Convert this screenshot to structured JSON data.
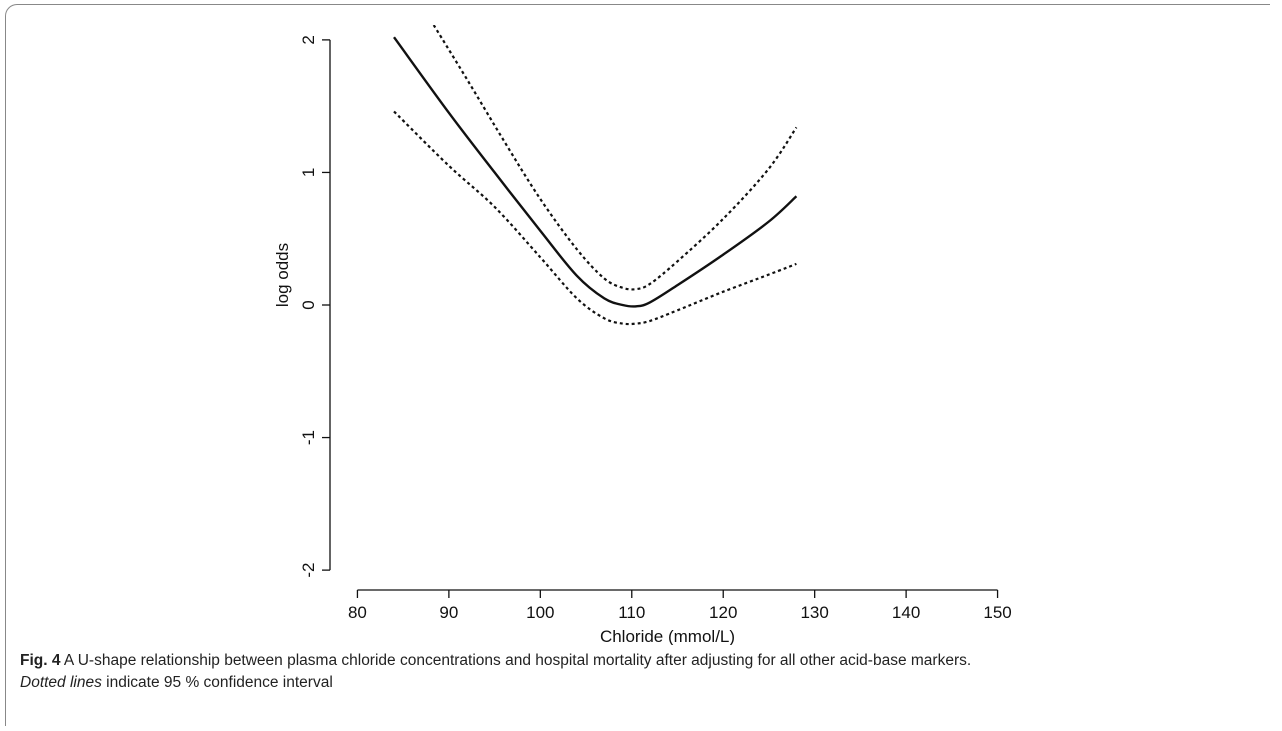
{
  "chart_data": {
    "type": "line",
    "xlabel": "Chloride (mmol/L)",
    "ylabel": "log odds",
    "xlim": [
      77,
      153
    ],
    "ylim": [
      -2.15,
      2.15
    ],
    "x_ticks": [
      "80",
      "90",
      "100",
      "110",
      "120",
      "130",
      "140",
      "150"
    ],
    "y_ticks": [
      "-2",
      "-1",
      "0",
      "1",
      "2"
    ],
    "grid": false,
    "series": [
      {
        "style": "solid",
        "x": [
          84,
          90,
          95,
          100,
          104,
          107,
          109,
          110.5,
          112,
          115,
          120,
          125,
          128
        ],
        "y": [
          2.02,
          1.45,
          1.0,
          0.56,
          0.22,
          0.05,
          0.0,
          -0.01,
          0.02,
          0.15,
          0.38,
          0.63,
          0.82
        ]
      },
      {
        "style": "dotted",
        "x": [
          88,
          92,
          96,
          100,
          104,
          107,
          109,
          110.5,
          112,
          115,
          120,
          125,
          128
        ],
        "y": [
          2.15,
          1.7,
          1.24,
          0.8,
          0.42,
          0.2,
          0.13,
          0.12,
          0.16,
          0.33,
          0.65,
          1.03,
          1.34
        ]
      },
      {
        "style": "dotted",
        "x": [
          84,
          90,
          95,
          100,
          104,
          107,
          109,
          110.5,
          112,
          115,
          120,
          125,
          128
        ],
        "y": [
          1.46,
          1.05,
          0.74,
          0.36,
          0.05,
          -0.1,
          -0.14,
          -0.14,
          -0.12,
          -0.04,
          0.1,
          0.23,
          0.31
        ]
      }
    ]
  },
  "caption": {
    "fig_label": "Fig. 4",
    "text": " A U-shape relationship between plasma chloride concentrations and hospital mortality after adjusting for all other acid-base markers.",
    "line2_em": "Dotted lines",
    "line2_rest": " indicate 95 % confidence interval"
  }
}
